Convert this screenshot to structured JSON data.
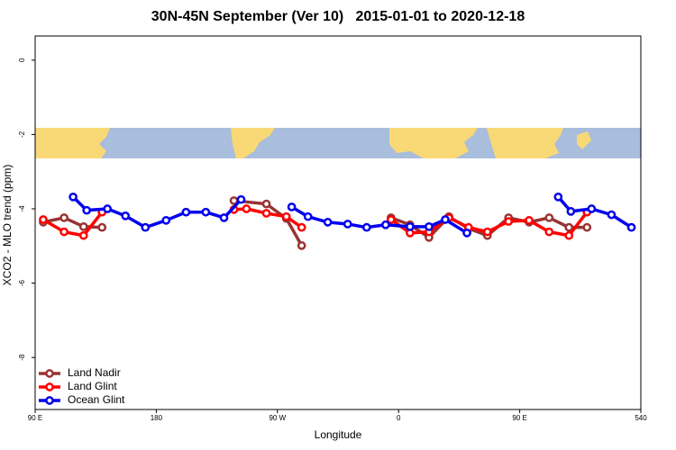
{
  "chart_data": {
    "type": "line",
    "title": "30N-45N September (Ver 10)   2015-01-01 to 2020-12-18",
    "x_label": "Longitude",
    "y_label": "XCO2 - MLO trend (ppm)",
    "xlim": [
      90,
      540
    ],
    "ylim": [
      -9.4,
      0.65
    ],
    "xticks": [
      {
        "value": 90,
        "label": "90 E"
      },
      180,
      {
        "value": 270,
        "label": "90 W"
      },
      {
        "value": 360,
        "label": "0"
      },
      {
        "value": 450,
        "label": "90 E"
      },
      540
    ],
    "yticks": [
      0,
      -2,
      -4,
      -6,
      -8
    ],
    "legend": "bottom-left",
    "series": [
      {
        "name": "Land Nadir",
        "color": "#993333",
        "x": [
          96,
          111.5,
          126,
          139.7,
          null,
          237.7,
          261.8,
          276.6,
          288,
          null,
          354.4,
          368.5,
          382.6,
          397.4,
          412,
          426,
          441.7,
          457,
          471.9,
          486.6,
          500
        ],
        "values": [
          -4.36,
          -4.24,
          -4.48,
          -4.5,
          null,
          -3.78,
          -3.87,
          -4.26,
          -4.99,
          null,
          -4.24,
          -4.43,
          -4.77,
          -4.21,
          -4.53,
          -4.72,
          -4.24,
          -4.36,
          -4.24,
          -4.5,
          -4.5
        ]
      },
      {
        "name": "Land Glint",
        "color": "#ff0000",
        "x": [
          96,
          111.5,
          126,
          139.7,
          null,
          237.7,
          247,
          261.8,
          276.6,
          288,
          null,
          354.4,
          368.5,
          382.6,
          397.4,
          412,
          426,
          441.7,
          457,
          471.9,
          486.6,
          500
        ],
        "values": [
          -4.29,
          -4.62,
          -4.72,
          -4.09,
          null,
          -4.02,
          -4.0,
          -4.12,
          -4.21,
          -4.5,
          null,
          -4.29,
          -4.65,
          -4.62,
          -4.24,
          -4.5,
          -4.62,
          -4.34,
          -4.31,
          -4.62,
          -4.72,
          -4.09
        ]
      },
      {
        "name": "Ocean Glint",
        "color": "#0000ee",
        "x": [
          118.2,
          128.3,
          143.7,
          157.1,
          171.9,
          187.3,
          202.1,
          216.8,
          230.3,
          243,
          null,
          280.6,
          292.7,
          307.4,
          322.2,
          336.3,
          350.4,
          368.5,
          382.6,
          394.7,
          410.8,
          null,
          478.6,
          488,
          503.4,
          518.2,
          533
        ],
        "values": [
          -3.68,
          -4.04,
          -4.0,
          -4.19,
          -4.5,
          -4.31,
          -4.09,
          -4.09,
          -4.24,
          -3.75,
          null,
          -3.95,
          -4.21,
          -4.36,
          -4.41,
          -4.5,
          -4.43,
          -4.48,
          -4.48,
          -4.29,
          -4.65,
          null,
          -3.68,
          -4.07,
          -4.0,
          -4.16,
          -4.5
        ]
      }
    ]
  }
}
